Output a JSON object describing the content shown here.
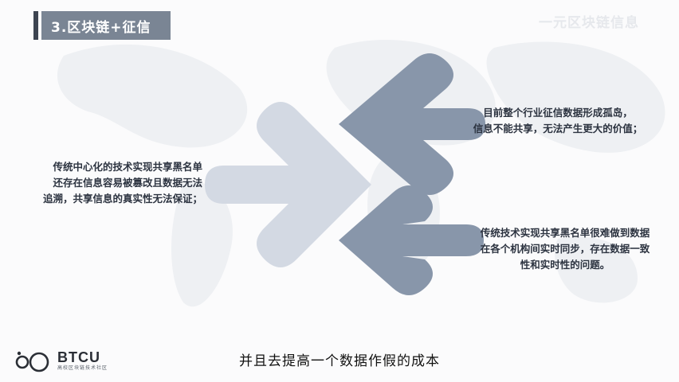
{
  "slide": {
    "title": "3.区块链+征信",
    "corner_watermark": "一元区块链信息"
  },
  "blocks": {
    "left": {
      "lines": [
        "传统中心化的技术实现共享黑名单",
        "还存在信息容易被篡改且数据无法",
        "追溯，共享信息的真实性无法保证；"
      ]
    },
    "right_top": {
      "lines": [
        "目前整个行业征信数据形成孤岛，",
        "信息不能共享，无法产生更大的价值；"
      ]
    },
    "right_bottom": {
      "lines": [
        "传统技术实现共享黑名单很难做到数据",
        "在各个机构间实时同步，存在数据一致",
        "性和实时性的问题。"
      ]
    }
  },
  "logo": {
    "name": "BTCU",
    "tagline": "高校区块链技术社区"
  },
  "subtitle": "并且去提高一个数据作假的成本",
  "colors": {
    "title_box": "#7a8594",
    "title_accent": "#3d4451",
    "arrow_dark": "#8896aa",
    "arrow_light": "#d3d9e3",
    "text": "#2c3340"
  }
}
